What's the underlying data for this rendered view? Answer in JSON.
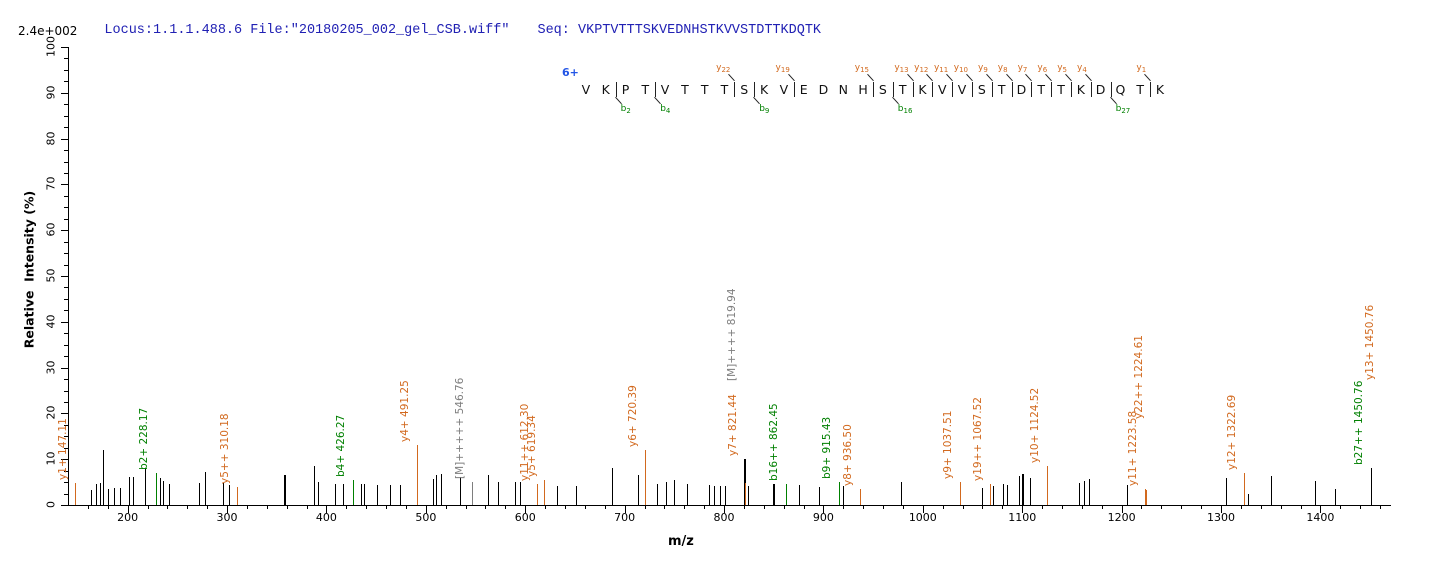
{
  "header": {
    "locus_file": "Locus:1.1.1.488.6 File:\"20180205_002_gel_CSB.wiff\"",
    "seq": "Seq: VKPTVTTTSKVEDNHSTKVVSTDTTKDQTK",
    "max_intensity": "2.4e+002"
  },
  "sequence": {
    "charge_state": "6+",
    "residues": "VKPTVTTTSKVEDNHSTKVVSTDTTKDQTK",
    "markers": [
      {
        "pos": 2,
        "ion": "b",
        "num": "2"
      },
      {
        "pos": 4,
        "ion": "b",
        "num": "4"
      },
      {
        "pos": 8,
        "ion": "y",
        "num": "22"
      },
      {
        "pos": 9,
        "ion": "b",
        "num": "9"
      },
      {
        "pos": 11,
        "ion": "y",
        "num": "19"
      },
      {
        "pos": 15,
        "ion": "y",
        "num": "15"
      },
      {
        "pos": 16,
        "ion": "b",
        "num": "16"
      },
      {
        "pos": 17,
        "ion": "y",
        "num": "13"
      },
      {
        "pos": 18,
        "ion": "y",
        "num": "12"
      },
      {
        "pos": 19,
        "ion": "y",
        "num": "11"
      },
      {
        "pos": 20,
        "ion": "y",
        "num": "10"
      },
      {
        "pos": 21,
        "ion": "y",
        "num": "9"
      },
      {
        "pos": 22,
        "ion": "y",
        "num": "8"
      },
      {
        "pos": 23,
        "ion": "y",
        "num": "7"
      },
      {
        "pos": 24,
        "ion": "y",
        "num": "6"
      },
      {
        "pos": 25,
        "ion": "y",
        "num": "5"
      },
      {
        "pos": 26,
        "ion": "y",
        "num": "4"
      },
      {
        "pos": 27,
        "ion": "b",
        "num": "27"
      },
      {
        "pos": 29,
        "ion": "y",
        "num": "1"
      }
    ]
  },
  "colors": {
    "y_ion": "#d2691e",
    "b_ion": "#008000",
    "precursor": "#7e7e7e",
    "peak_black": "#000000",
    "header_blue": "#2121b4",
    "charge_blue": "#2356e6"
  },
  "chart_data": {
    "type": "bar",
    "title": "MS/MS fragment spectrum, Locus 1.1.1.488.6, peptide VKPTVTTTSKVEDNHSTKVVSTDTTKDQTK (6+)",
    "xlabel": "m/z",
    "ylabel": "Relative  Intensity (%)",
    "xlim": [
      140,
      1468
    ],
    "ylim": [
      0,
      100
    ],
    "axis_ticks": {
      "x_major_start": 200,
      "x_major_end": 1400,
      "x_major_step": 100,
      "x_minor_step": 20,
      "y_major_step": 10,
      "y_minor_step": 2.5
    },
    "peaks": [
      {
        "mz": 147.11,
        "pct": 4.7,
        "c": "y",
        "label": "y1+ 147.11"
      },
      {
        "mz": 163,
        "pct": 3.2,
        "c": "k"
      },
      {
        "mz": 168,
        "pct": 4.6,
        "c": "k"
      },
      {
        "mz": 172,
        "pct": 4.8,
        "c": "k"
      },
      {
        "mz": 175,
        "pct": 12,
        "c": "k"
      },
      {
        "mz": 180,
        "pct": 3.4,
        "c": "k"
      },
      {
        "mz": 186,
        "pct": 3.8,
        "c": "k"
      },
      {
        "mz": 192,
        "pct": 3.8,
        "c": "k"
      },
      {
        "mz": 201,
        "pct": 6.2,
        "c": "k"
      },
      {
        "mz": 205,
        "pct": 6.2,
        "c": "k"
      },
      {
        "mz": 217,
        "pct": 7.8,
        "c": "k"
      },
      {
        "mz": 228.17,
        "pct": 7,
        "c": "b",
        "label": "b2+ 228.17"
      },
      {
        "mz": 233,
        "pct": 6,
        "c": "k"
      },
      {
        "mz": 236,
        "pct": 5.2,
        "c": "k"
      },
      {
        "mz": 242,
        "pct": 4.6,
        "c": "k"
      },
      {
        "mz": 272,
        "pct": 4.8,
        "c": "k"
      },
      {
        "mz": 278,
        "pct": 7.2,
        "c": "k"
      },
      {
        "mz": 296,
        "pct": 4.8,
        "c": "k"
      },
      {
        "mz": 302,
        "pct": 4.4,
        "c": "k"
      },
      {
        "mz": 310.18,
        "pct": 4,
        "c": "y",
        "label": "y5++ 310.18"
      },
      {
        "mz": 357,
        "pct": 6.6,
        "c": "k",
        "w": 2
      },
      {
        "mz": 387,
        "pct": 8.6,
        "c": "k"
      },
      {
        "mz": 392,
        "pct": 5,
        "c": "k"
      },
      {
        "mz": 409,
        "pct": 4.6,
        "c": "k"
      },
      {
        "mz": 417,
        "pct": 4.6,
        "c": "k"
      },
      {
        "mz": 426.27,
        "pct": 5.5,
        "c": "b",
        "label": "b4+ 426.27"
      },
      {
        "mz": 435,
        "pct": 4.6,
        "c": "k"
      },
      {
        "mz": 438,
        "pct": 4.6,
        "c": "k"
      },
      {
        "mz": 451,
        "pct": 4.4,
        "c": "k"
      },
      {
        "mz": 464,
        "pct": 4.4,
        "c": "k"
      },
      {
        "mz": 474,
        "pct": 4.4,
        "c": "k"
      },
      {
        "mz": 491.25,
        "pct": 13,
        "c": "y",
        "label": "y4+ 491.25"
      },
      {
        "mz": 507,
        "pct": 5.6,
        "c": "k"
      },
      {
        "mz": 510,
        "pct": 6.6,
        "c": "k"
      },
      {
        "mz": 515,
        "pct": 6.8,
        "c": "k"
      },
      {
        "mz": 534,
        "pct": 6.2,
        "c": "k"
      },
      {
        "mz": 546.76,
        "pct": 5,
        "c": "m",
        "label": "[M]+++++ 546.76"
      },
      {
        "mz": 563,
        "pct": 6.6,
        "c": "k"
      },
      {
        "mz": 573,
        "pct": 5,
        "c": "k"
      },
      {
        "mz": 590,
        "pct": 5,
        "c": "k"
      },
      {
        "mz": 595,
        "pct": 5,
        "c": "k"
      },
      {
        "mz": 612.3,
        "pct": 4.5,
        "c": "y",
        "label": "y11++ 612.30"
      },
      {
        "mz": 619.34,
        "pct": 5.5,
        "c": "y",
        "label": "y5+ 619.34"
      },
      {
        "mz": 632,
        "pct": 4.2,
        "c": "k"
      },
      {
        "mz": 651,
        "pct": 4.2,
        "c": "k"
      },
      {
        "mz": 687,
        "pct": 8,
        "c": "k"
      },
      {
        "mz": 713,
        "pct": 6.6,
        "c": "k"
      },
      {
        "mz": 720.39,
        "pct": 12,
        "c": "y",
        "label": "y6+ 720.39"
      },
      {
        "mz": 733,
        "pct": 4.6,
        "c": "k"
      },
      {
        "mz": 742,
        "pct": 5,
        "c": "k"
      },
      {
        "mz": 750,
        "pct": 5.4,
        "c": "k"
      },
      {
        "mz": 763,
        "pct": 4.6,
        "c": "k"
      },
      {
        "mz": 785,
        "pct": 4.4,
        "c": "k"
      },
      {
        "mz": 790,
        "pct": 4.2,
        "c": "k"
      },
      {
        "mz": 796,
        "pct": 4.2,
        "c": "k"
      },
      {
        "mz": 801,
        "pct": 4.2,
        "c": "k"
      },
      {
        "mz": 819.94,
        "pct": 10,
        "c": "m",
        "lc": "k",
        "w": 2,
        "label": "[M]++++ 819.94",
        "raise": 75
      },
      {
        "mz": 821.44,
        "pct": 4.8,
        "c": "y",
        "label": "y7+ 821.44",
        "raise": 24
      },
      {
        "mz": 824,
        "pct": 4.2,
        "c": "k"
      },
      {
        "mz": 849,
        "pct": 4.5,
        "c": "k",
        "w": 2
      },
      {
        "mz": 862.45,
        "pct": 4.5,
        "c": "b",
        "label": "b16++ 862.45"
      },
      {
        "mz": 875,
        "pct": 4.4,
        "c": "k"
      },
      {
        "mz": 896,
        "pct": 4,
        "c": "k"
      },
      {
        "mz": 915.43,
        "pct": 5,
        "c": "b",
        "label": "b9+ 915.43"
      },
      {
        "mz": 920,
        "pct": 4.2,
        "c": "k"
      },
      {
        "mz": 936.5,
        "pct": 3.5,
        "c": "y",
        "label": "y8+ 936.50"
      },
      {
        "mz": 978,
        "pct": 5,
        "c": "k"
      },
      {
        "mz": 1037.51,
        "pct": 5,
        "c": "y",
        "label": "y9+ 1037.51"
      },
      {
        "mz": 1060,
        "pct": 3.8,
        "c": "k"
      },
      {
        "mz": 1067.52,
        "pct": 4.5,
        "c": "y",
        "label": "y19++ 1067.52"
      },
      {
        "mz": 1071,
        "pct": 4.2,
        "c": "k"
      },
      {
        "mz": 1081,
        "pct": 4.6,
        "c": "k"
      },
      {
        "mz": 1085,
        "pct": 4.4,
        "c": "k"
      },
      {
        "mz": 1097,
        "pct": 6.4,
        "c": "k"
      },
      {
        "mz": 1100,
        "pct": 6.8,
        "c": "k",
        "w": 2
      },
      {
        "mz": 1108,
        "pct": 6,
        "c": "k"
      },
      {
        "mz": 1124.52,
        "pct": 8.5,
        "c": "y",
        "label": "y10+ 1124.52"
      },
      {
        "mz": 1157,
        "pct": 4.8,
        "c": "k"
      },
      {
        "mz": 1162,
        "pct": 5.2,
        "c": "k"
      },
      {
        "mz": 1167,
        "pct": 5.6,
        "c": "k"
      },
      {
        "mz": 1205,
        "pct": 4.4,
        "c": "k"
      },
      {
        "mz": 1223.58,
        "pct": 3.5,
        "c": "y",
        "label": "y11+ 1223.58"
      },
      {
        "mz": 1224.61,
        "pct": 3.2,
        "c": "y",
        "label": "y22++ 1224.61",
        "raise": 68,
        "dx": 5
      },
      {
        "mz": 1305,
        "pct": 5.8,
        "c": "k"
      },
      {
        "mz": 1322.69,
        "pct": 7,
        "c": "y",
        "label": "y12+ 1322.69"
      },
      {
        "mz": 1327,
        "pct": 2.4,
        "c": "k"
      },
      {
        "mz": 1350,
        "pct": 6.4,
        "c": "k"
      },
      {
        "mz": 1395,
        "pct": 5.2,
        "c": "k"
      },
      {
        "mz": 1415,
        "pct": 3.4,
        "c": "k"
      },
      {
        "mz": 1450.76,
        "pct": 8,
        "c": "b",
        "lc": "k",
        "label": "b27++ 1450.76"
      }
    ],
    "extra_labels": [
      {
        "mz": 1450.76,
        "pct": 8,
        "text": "y13+ 1450.76",
        "c": "y",
        "raise": 85,
        "dx": 11
      }
    ]
  }
}
